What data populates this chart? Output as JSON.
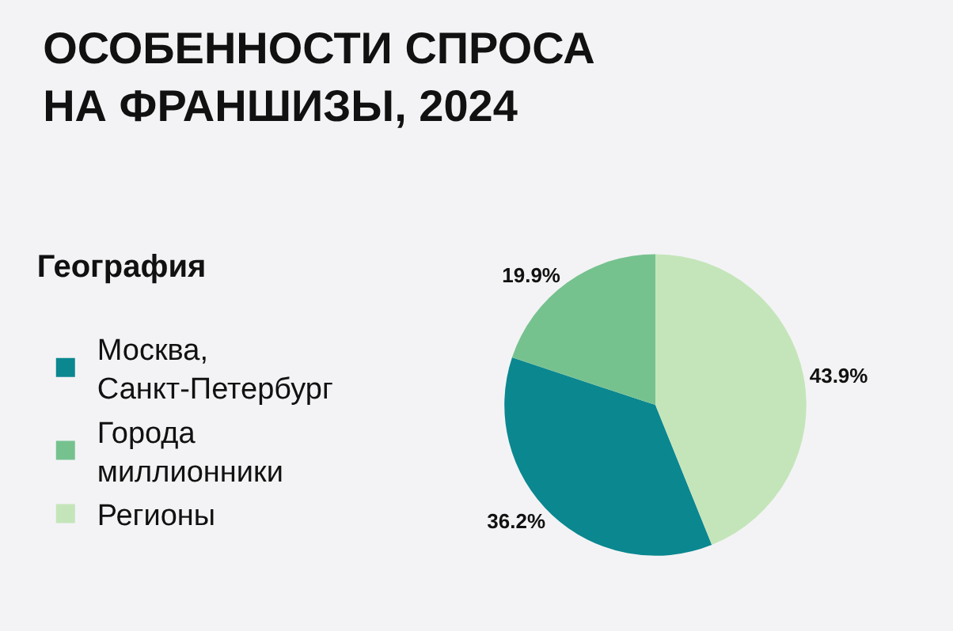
{
  "chart_data": {
    "type": "pie",
    "title": "ОСОБЕННОСТИ СПРОСА\nНА ФРАНШИЗЫ, 2024",
    "legend_title": "География",
    "categories": [
      "Москва, Санкт-Петербург",
      "Города миллионники",
      "Регионы"
    ],
    "values": [
      36.2,
      19.9,
      43.9
    ],
    "value_labels": [
      "36.2%",
      "19.9%",
      "43.9%"
    ],
    "colors": [
      "#0b8790",
      "#76c28f",
      "#c4e5b9"
    ],
    "legend": "left"
  }
}
